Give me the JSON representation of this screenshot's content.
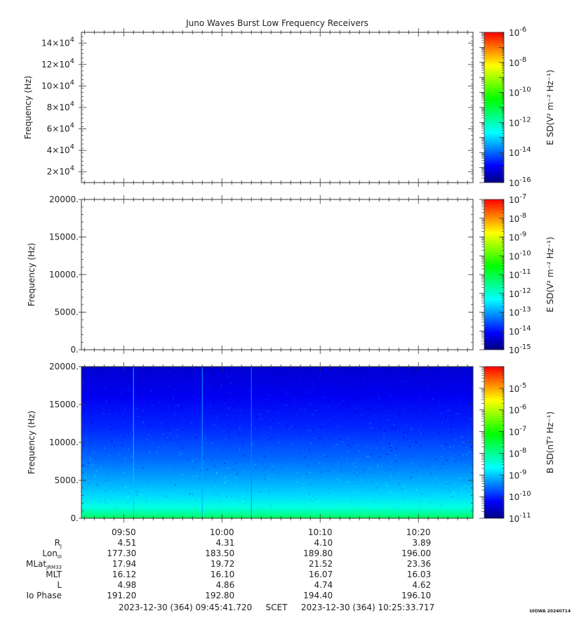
{
  "figure": {
    "title": "Juno Waves Burst Low Frequency Receivers",
    "footer": {
      "start": "2023-12-30 (364) 09:45:41.720",
      "label": "SCET",
      "end": "2023-12-30 (364) 10:25:33.717"
    },
    "watermark": "UIOWA 20240714"
  },
  "colors": {
    "colormap": [
      "#000080",
      "#0000ff",
      "#0080ff",
      "#00ffff",
      "#00ff80",
      "#00ff00",
      "#80ff00",
      "#ffff00",
      "#ff8000",
      "#ff0000"
    ],
    "frame": "#333333"
  },
  "chart_data": [
    {
      "type": "heatmap",
      "ylabel": "Frequency (Hz)",
      "ylim": [
        10000,
        150000
      ],
      "yticks": [
        20000,
        40000,
        60000,
        80000,
        100000,
        120000,
        140000
      ],
      "ytick_labels": [
        {
          "mantissa": "2×10",
          "exp": "4"
        },
        {
          "mantissa": "4×10",
          "exp": "4"
        },
        {
          "mantissa": "6×10",
          "exp": "4"
        },
        {
          "mantissa": "8×10",
          "exp": "4"
        },
        {
          "mantissa": "10×10",
          "exp": "4"
        },
        {
          "mantissa": "12×10",
          "exp": "4"
        },
        {
          "mantissa": "14×10",
          "exp": "4"
        }
      ],
      "colorbar": {
        "label": "E SD(V² m⁻² Hz⁻¹)",
        "range_exp": [
          -16,
          -6
        ],
        "ticks": [
          -16,
          -14,
          -12,
          -10,
          -8,
          -6
        ]
      },
      "content": "empty"
    },
    {
      "type": "heatmap",
      "ylabel": "Frequency (Hz)",
      "ylim": [
        0,
        20000
      ],
      "yticks": [
        0,
        5000,
        10000,
        15000,
        20000
      ],
      "ytick_labels": [
        "0.",
        "5000.",
        "10000.",
        "15000.",
        "20000."
      ],
      "colorbar": {
        "label": "E SD(V² m⁻² Hz⁻¹)",
        "range_exp": [
          -15,
          -7
        ],
        "ticks": [
          -15,
          -14,
          -13,
          -12,
          -11,
          -10,
          -9,
          -8,
          -7
        ]
      },
      "content": "empty"
    },
    {
      "type": "heatmap",
      "ylabel": "Frequency (Hz)",
      "ylim": [
        0,
        20000
      ],
      "yticks": [
        0,
        5000,
        10000,
        15000,
        20000
      ],
      "ytick_labels": [
        "0.",
        "5000.",
        "10000.",
        "15000.",
        "20000."
      ],
      "colorbar": {
        "label": "B SD(nT² Hz⁻¹)",
        "range_exp": [
          -11,
          -4
        ],
        "ticks": [
          -11,
          -10,
          -9,
          -8,
          -7,
          -6,
          -5
        ]
      },
      "content": "spectrogram",
      "intensity_profile": [
        {
          "freq_hz": 0,
          "log_psd": -7.6
        },
        {
          "freq_hz": 500,
          "log_psd": -8.0
        },
        {
          "freq_hz": 1500,
          "log_psd": -8.5
        },
        {
          "freq_hz": 3000,
          "log_psd": -8.9
        },
        {
          "freq_hz": 5000,
          "log_psd": -9.2
        },
        {
          "freq_hz": 8000,
          "log_psd": -9.6
        },
        {
          "freq_hz": 12000,
          "log_psd": -10.0
        },
        {
          "freq_hz": 16000,
          "log_psd": -10.3
        },
        {
          "freq_hz": 20000,
          "log_psd": -10.5
        }
      ],
      "vertical_lines": [
        {
          "time": "09:51",
          "log_psd": -9.0
        },
        {
          "time": "09:58",
          "log_psd": -9.2
        },
        {
          "time": "10:03",
          "log_psd": -9.4
        }
      ],
      "time_ticks": [
        "09:50",
        "10:00",
        "10:10",
        "10:20"
      ],
      "time_range": [
        "09:45:41.720",
        "10:25:33.717"
      ]
    }
  ],
  "ephemeris": {
    "rows": [
      {
        "label": "R",
        "sub": "J",
        "values": [
          "4.51",
          "4.31",
          "4.10",
          "3.89"
        ]
      },
      {
        "label": "Lon",
        "sub": "III",
        "values": [
          "177.30",
          "183.50",
          "189.80",
          "196.00"
        ]
      },
      {
        "label": "MLat",
        "sub": "JRM33",
        "values": [
          "17.94",
          "19.72",
          "21.52",
          "23.36"
        ]
      },
      {
        "label": "MLT",
        "sub": "",
        "values": [
          "16.12",
          "16.10",
          "16.07",
          "16.03"
        ]
      },
      {
        "label": "L",
        "sub": "",
        "values": [
          "4.98",
          "4.86",
          "4.74",
          "4.62"
        ]
      },
      {
        "label": "Io Phase",
        "sub": "",
        "values": [
          "191.20",
          "192.80",
          "194.40",
          "196.10"
        ]
      }
    ]
  }
}
